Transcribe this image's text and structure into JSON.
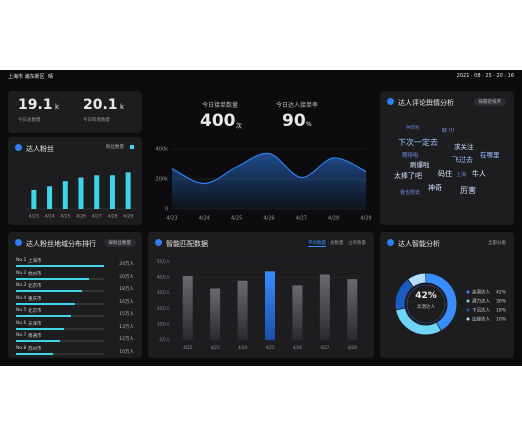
{
  "header": {
    "location": "上海市 浦东新区",
    "weather": "晴",
    "datetime": "2021 · 08 · 25 · 20 : 16"
  },
  "stats": [
    {
      "value": "19.1",
      "unit": "k",
      "label": "今日总数量"
    },
    {
      "value": "20.1",
      "unit": "k",
      "label": "今日新增数量"
    }
  ],
  "fans": {
    "title": "达人粉丝",
    "chart_data": {
      "type": "bar",
      "categories": [
        "4/23",
        "4/24",
        "4/25",
        "4/26",
        "4/27",
        "4/28",
        "4/29"
      ],
      "series": [
        {
          "name": "粉丝数量",
          "color": "#3fd4e8",
          "values": [
            2.6,
            3.1,
            3.8,
            4.3,
            4.6,
            4.6,
            5.0
          ]
        }
      ],
      "ylim": [
        0,
        6
      ]
    }
  },
  "orders": {
    "items": [
      {
        "label": "今日接单数量",
        "value": "400",
        "unit": "次"
      },
      {
        "label": "今日达人接单率",
        "value": "90",
        "unit": "%"
      }
    ],
    "chart_data": {
      "type": "area",
      "color": "#2e7ff0",
      "categories": [
        "4/23",
        "4/24",
        "4/25",
        "4/26",
        "4/27",
        "4/28",
        "4/29"
      ],
      "values": [
        270000,
        170000,
        280000,
        370000,
        210000,
        340000,
        250000
      ],
      "ylim": [
        0,
        400000
      ],
      "yticks": [
        {
          "value": 0,
          "label": "0"
        },
        {
          "value": 200000,
          "label": "200k"
        },
        {
          "value": 400000,
          "label": "400k"
        }
      ]
    }
  },
  "comments": {
    "title": "达人评论舆情分析",
    "sort": "按最近排序",
    "words": [
      "种草啦",
      "好 !!!",
      "下次一定去",
      "求关注",
      "期待啦",
      "在哪里",
      "刷爆啦",
      "飞过去",
      "码住",
      "太棒了吧",
      "牛人",
      "上海",
      "神奇",
      "厉害",
      "我也想去"
    ]
  },
  "ranking": {
    "title": "达人粉丝地域分布排行",
    "sort": "按粉丝数量",
    "rows": [
      {
        "rank": "No.1",
        "city": "上海市",
        "value": 24,
        "label": "24万人"
      },
      {
        "rank": "No.2",
        "city": "杭州市",
        "value": 20,
        "label": "20万人"
      },
      {
        "rank": "No.3",
        "city": "北京市",
        "value": 18,
        "label": "18万人"
      },
      {
        "rank": "No.4",
        "city": "重庆市",
        "value": 16,
        "label": "16万人"
      },
      {
        "rank": "No.5",
        "city": "北京市",
        "value": 15,
        "label": "15万人"
      },
      {
        "rank": "No.6",
        "city": "天津市",
        "value": 13,
        "label": "13万人"
      },
      {
        "rank": "No.7",
        "city": "南通市",
        "value": 12,
        "label": "12万人"
      },
      {
        "rank": "No.8",
        "city": "苏州市",
        "value": 10,
        "label": "10万人"
      }
    ]
  },
  "matching": {
    "title": "智能匹配数据",
    "tabs": [
      "平均数量",
      "总数量",
      "占有数量"
    ],
    "chart_data": {
      "type": "bar",
      "categories": [
        "4/22",
        "4/23",
        "4/24",
        "4/25",
        "4/26",
        "4/27",
        "4/28"
      ],
      "values": [
        41,
        33,
        38,
        44,
        35,
        42,
        39
      ],
      "color": "#55555c",
      "highlight_color": "#2f7ff2",
      "highlight": 3,
      "ylim": [
        0,
        50
      ],
      "yticks": [
        {
          "value": 0,
          "label": "0万人"
        },
        {
          "value": 10,
          "label": "10万人"
        },
        {
          "value": 20,
          "label": "20万人"
        },
        {
          "value": 30,
          "label": "30万人"
        },
        {
          "value": 40,
          "label": "40万人"
        },
        {
          "value": 50,
          "label": "50万人"
        }
      ]
    }
  },
  "analysis": {
    "title": "达人智能分析",
    "filter": "全部分类",
    "center_value": "42%",
    "center_label": "高潜达人",
    "chart_data": {
      "type": "donut",
      "categories": [
        "高潜达人",
        "潜力达人",
        "下沉达人",
        "边缘达人"
      ],
      "values": [
        42,
        30,
        18,
        10
      ],
      "value_labels": [
        "42%",
        "30%",
        "18%",
        "10%"
      ],
      "colors": [
        "#3a8cff",
        "#6fd6f7",
        "#1c5bc0",
        "#b3dcff"
      ]
    }
  }
}
